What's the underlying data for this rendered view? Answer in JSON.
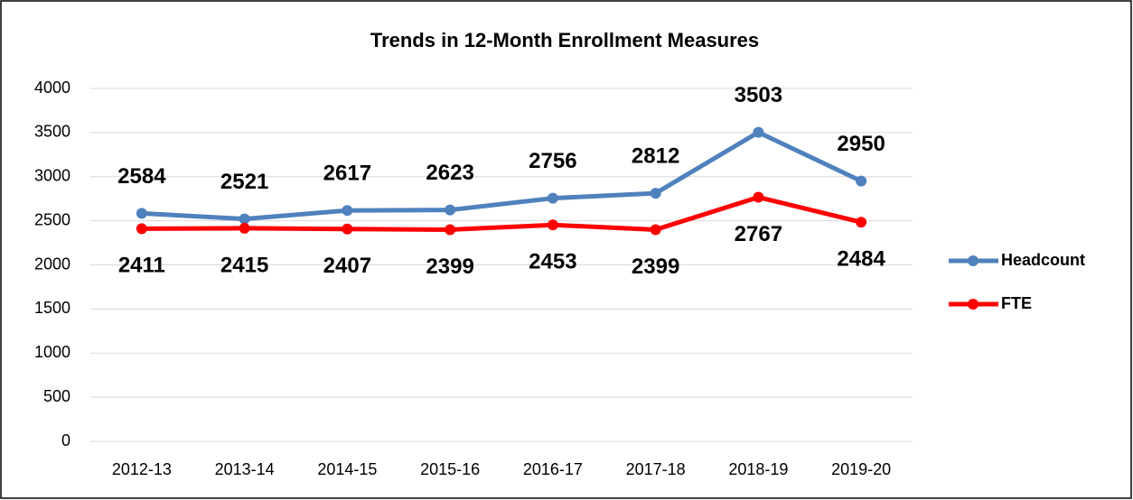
{
  "chart_data": {
    "type": "line",
    "title": "Trends in 12-Month Enrollment Measures",
    "categories": [
      "2012-13",
      "2013-14",
      "2014-15",
      "2015-16",
      "2016-17",
      "2017-18",
      "2018-19",
      "2019-20"
    ],
    "series": [
      {
        "name": "Headcount",
        "color": "#4f81bd",
        "label_color": "#0070c0",
        "values": [
          2584,
          2521,
          2617,
          2623,
          2756,
          2812,
          3503,
          2950
        ]
      },
      {
        "name": "FTE",
        "color": "#ff0000",
        "label_color": "#ff0000",
        "values": [
          2411,
          2415,
          2407,
          2399,
          2453,
          2399,
          2767,
          2484
        ]
      }
    ],
    "ylim": [
      0,
      4000
    ],
    "yticks": [
      0,
      500,
      1000,
      1500,
      2000,
      2500,
      3000,
      3500,
      4000
    ],
    "grid": true,
    "legend": "right"
  }
}
